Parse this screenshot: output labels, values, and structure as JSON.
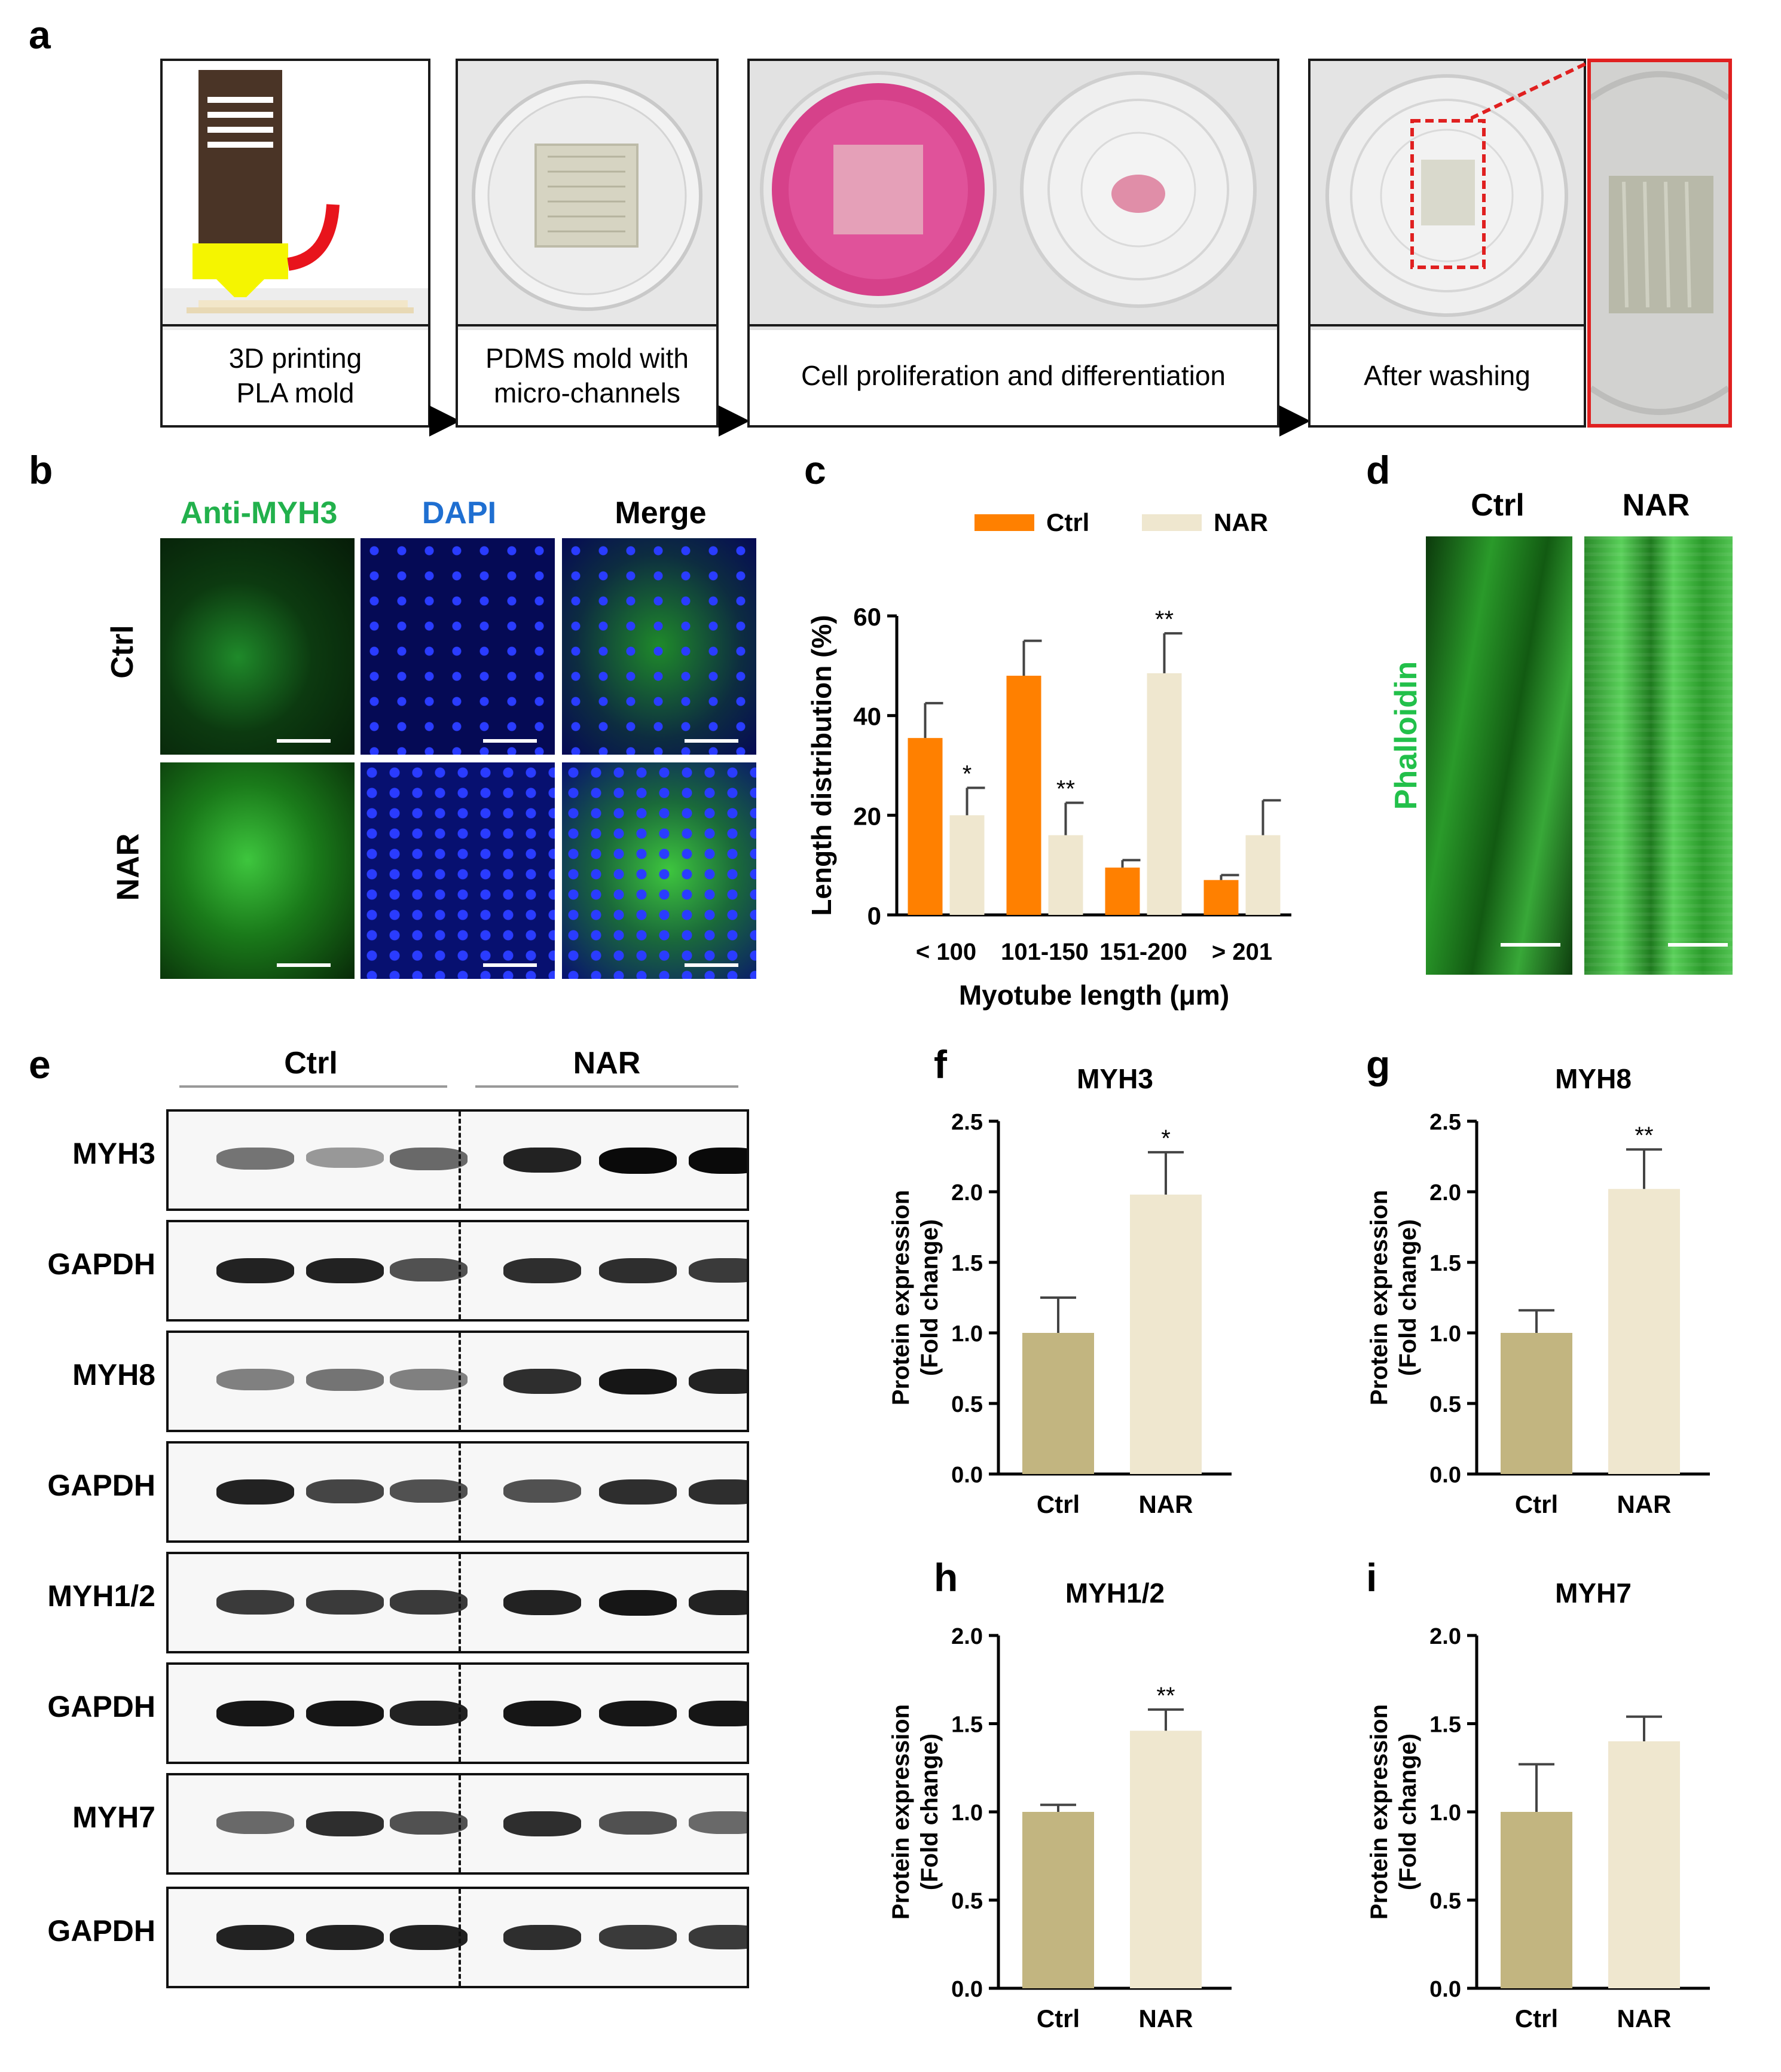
{
  "panels": {
    "a": "a",
    "b": "b",
    "c": "c",
    "d": "d",
    "e": "e",
    "f": "f",
    "g": "g",
    "h": "h",
    "i": "i"
  },
  "panel_a": {
    "steps": [
      "3D printing\nPLA mold",
      "PDMS mold with\nmicro-channels",
      "Cell proliferation and differentiation",
      "After washing"
    ]
  },
  "panel_b": {
    "columns": [
      "Anti-MYH3",
      "DAPI",
      "Merge"
    ],
    "rows": [
      "Ctrl",
      "NAR"
    ],
    "colors": {
      "myh3": "#22b14c",
      "dapi": "#1f6fd1"
    }
  },
  "panel_d": {
    "columns": [
      "Ctrl",
      "NAR"
    ],
    "stain": "Phalloidin"
  },
  "panel_e": {
    "groups": [
      "Ctrl",
      "NAR"
    ],
    "blots": [
      "MYH3",
      "GAPDH",
      "MYH8",
      "GAPDH",
      "MYH1/2",
      "GAPDH",
      "MYH7",
      "GAPDH"
    ]
  },
  "chart_data": [
    {
      "panel": "c",
      "type": "bar",
      "categories": [
        "< 100",
        "101-150",
        "151-200",
        "> 201"
      ],
      "series": [
        {
          "name": "Ctrl",
          "values": [
            35.5,
            48,
            9.5,
            7
          ],
          "errors": [
            7,
            7,
            1.5,
            1
          ],
          "color": "#ff8000"
        },
        {
          "name": "NAR",
          "values": [
            20,
            16,
            48.5,
            16
          ],
          "errors": [
            5.5,
            6.5,
            8,
            7
          ],
          "color": "#efe7cf"
        }
      ],
      "significance": {
        "NAR": [
          "*",
          "**",
          "**",
          ""
        ]
      },
      "xlabel": "Myotube length (μm)",
      "ylabel": "Length distribution (%)",
      "ylim": [
        0,
        60
      ],
      "yticks": [
        0,
        20,
        40,
        60
      ],
      "legend": "top"
    },
    {
      "panel": "f",
      "type": "bar",
      "title": "MYH3",
      "categories": [
        "Ctrl",
        "NAR"
      ],
      "values": [
        1.0,
        1.98
      ],
      "errors": [
        0.25,
        0.3
      ],
      "significance": [
        "",
        "*"
      ],
      "ylabel": [
        "Protein expression",
        "(Fold change)"
      ],
      "ylim": [
        0,
        2.5
      ],
      "yticks": [
        "0.0",
        "0.5",
        "1.0",
        "1.5",
        "2.0",
        "2.5"
      ]
    },
    {
      "panel": "g",
      "type": "bar",
      "title": "MYH8",
      "categories": [
        "Ctrl",
        "NAR"
      ],
      "values": [
        1.0,
        2.02
      ],
      "errors": [
        0.16,
        0.28
      ],
      "significance": [
        "",
        "**"
      ],
      "ylabel": [
        "Protein expression",
        "(Fold change)"
      ],
      "ylim": [
        0,
        2.5
      ],
      "yticks": [
        "0.0",
        "0.5",
        "1.0",
        "1.5",
        "2.0",
        "2.5"
      ]
    },
    {
      "panel": "h",
      "type": "bar",
      "title": "MYH1/2",
      "categories": [
        "Ctrl",
        "NAR"
      ],
      "values": [
        1.0,
        1.46
      ],
      "errors": [
        0.04,
        0.12
      ],
      "significance": [
        "",
        "**"
      ],
      "ylabel": [
        "Protein expression",
        "(Fold change)"
      ],
      "ylim": [
        0,
        2.0
      ],
      "yticks": [
        "0.0",
        "0.5",
        "1.0",
        "1.5",
        "2.0"
      ]
    },
    {
      "panel": "i",
      "type": "bar",
      "title": "MYH7",
      "categories": [
        "Ctrl",
        "NAR"
      ],
      "values": [
        1.0,
        1.4
      ],
      "errors": [
        0.27,
        0.14
      ],
      "significance": [
        "",
        ""
      ],
      "ylabel": [
        "Protein expression",
        "(Fold change)"
      ],
      "ylim": [
        0,
        2.0
      ],
      "yticks": [
        "0.0",
        "0.5",
        "1.0",
        "1.5",
        "2.0"
      ]
    }
  ],
  "colors": {
    "ctrl_bar": "#c2b580",
    "nar_bar": "#efe7cf",
    "highlight": "#e02020"
  }
}
